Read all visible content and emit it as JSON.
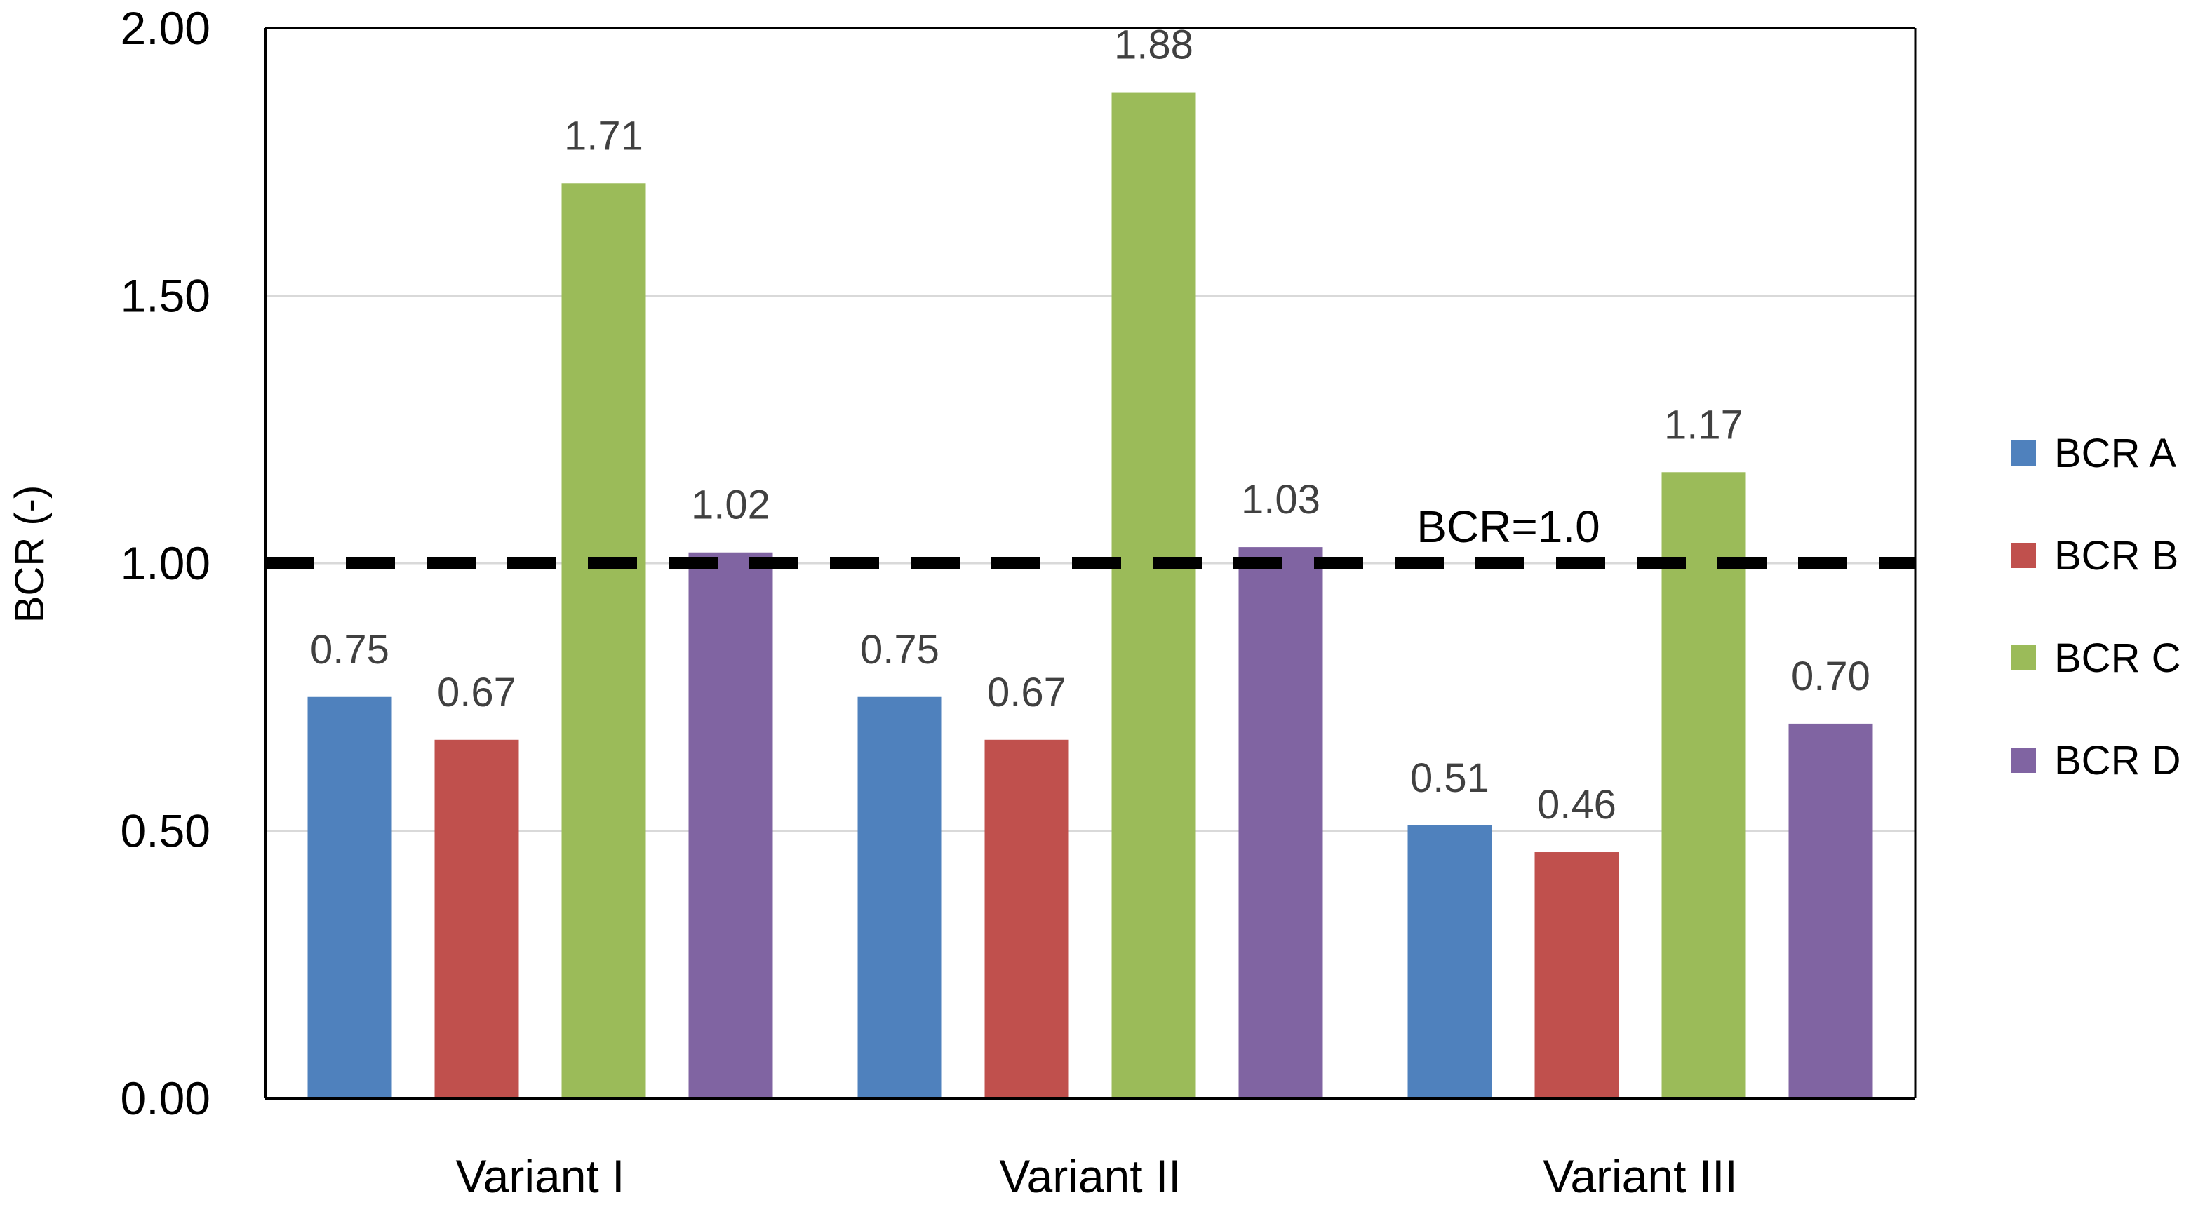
{
  "chart_data": {
    "type": "bar",
    "title": "",
    "xlabel": "",
    "ylabel": "BCR (-)",
    "ylim": [
      0,
      2
    ],
    "yticks": [
      0,
      0.5,
      1.0,
      1.5,
      2.0
    ],
    "ytick_labels": [
      "0.00",
      "0.50",
      "1.00",
      "1.50",
      "2.00"
    ],
    "grid": true,
    "legend_position": "right",
    "categories": [
      "Variant I",
      "Variant II",
      "Variant III"
    ],
    "series": [
      {
        "name": "BCR A",
        "color": "#4F81BD",
        "values": [
          0.75,
          0.75,
          0.51
        ],
        "labels": [
          "0.75",
          "0.75",
          "0.51"
        ]
      },
      {
        "name": "BCR B",
        "color": "#C0504D",
        "values": [
          0.67,
          0.67,
          0.46
        ],
        "labels": [
          "0.67",
          "0.67",
          "0.46"
        ]
      },
      {
        "name": "BCR C",
        "color": "#9BBB59",
        "values": [
          1.71,
          1.88,
          1.17
        ],
        "labels": [
          "1.71",
          "1.88",
          "1.17"
        ]
      },
      {
        "name": "BCR D",
        "color": "#8064A2",
        "values": [
          1.02,
          1.03,
          0.7
        ],
        "labels": [
          "1.02",
          "1.03",
          "0.70"
        ]
      }
    ],
    "reference_line": {
      "value": 1.0,
      "label": "BCR=1.0",
      "style": "dashed",
      "color": "#000000"
    }
  }
}
